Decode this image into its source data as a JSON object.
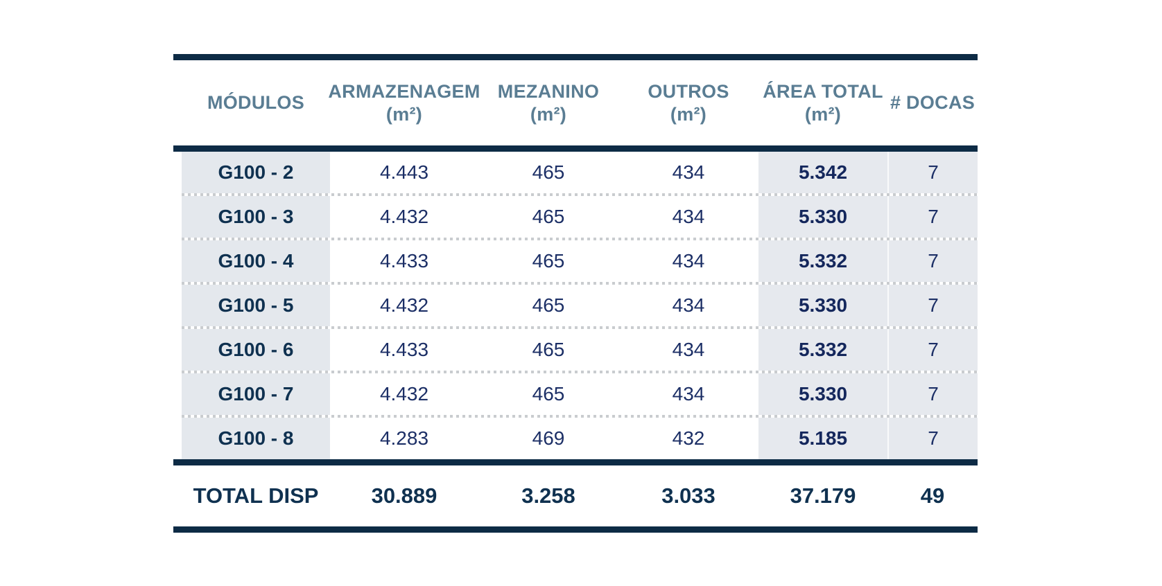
{
  "colors": {
    "rule_navy": "#0d2b45",
    "header_text": "#5a7d93",
    "module_text": "#0f3150",
    "number_text": "#1c2f66",
    "area_total_text": "#14275c",
    "total_row_text": "#0f3150",
    "col_modulos_bg": "#e4e8ed",
    "col_area_docas_bg": "#e6e9ee",
    "dotted_separator": "#c9cccf",
    "background": "#ffffff"
  },
  "chart_data": {
    "type": "table",
    "title": "",
    "columns": [
      {
        "label": "MÓDULOS",
        "unit": ""
      },
      {
        "label": "ARMAZENAGEM",
        "unit": "(m²)"
      },
      {
        "label": "MEZANINO",
        "unit": "(m²)"
      },
      {
        "label": "OUTROS",
        "unit": "(m²)"
      },
      {
        "label": "ÁREA TOTAL",
        "unit": "(m²)"
      },
      {
        "label": "# DOCAS",
        "unit": ""
      }
    ],
    "rows": [
      {
        "modulo": "G100 - 2",
        "armazenagem": "4.443",
        "mezanino": "465",
        "outros": "434",
        "area_total": "5.342",
        "docas": "7"
      },
      {
        "modulo": "G100 - 3",
        "armazenagem": "4.432",
        "mezanino": "465",
        "outros": "434",
        "area_total": "5.330",
        "docas": "7"
      },
      {
        "modulo": "G100 - 4",
        "armazenagem": "4.433",
        "mezanino": "465",
        "outros": "434",
        "area_total": "5.332",
        "docas": "7"
      },
      {
        "modulo": "G100 - 5",
        "armazenagem": "4.432",
        "mezanino": "465",
        "outros": "434",
        "area_total": "5.330",
        "docas": "7"
      },
      {
        "modulo": "G100 - 6",
        "armazenagem": "4.433",
        "mezanino": "465",
        "outros": "434",
        "area_total": "5.332",
        "docas": "7"
      },
      {
        "modulo": "G100 - 7",
        "armazenagem": "4.432",
        "mezanino": "465",
        "outros": "434",
        "area_total": "5.330",
        "docas": "7"
      },
      {
        "modulo": "G100 - 8",
        "armazenagem": "4.283",
        "mezanino": "469",
        "outros": "432",
        "area_total": "5.185",
        "docas": "7"
      }
    ],
    "total": {
      "label": "TOTAL DISP",
      "armazenagem": "30.889",
      "mezanino": "3.258",
      "outros": "3.033",
      "area_total": "37.179",
      "docas": "49"
    }
  }
}
